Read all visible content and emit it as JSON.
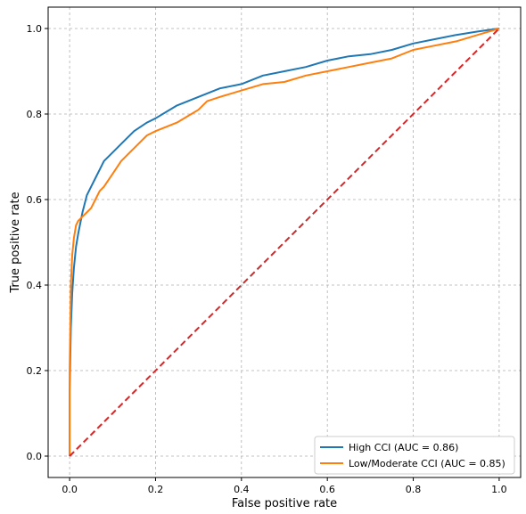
{
  "chart_data": {
    "type": "line",
    "xlabel": "False positive rate",
    "ylabel": "True positive rate",
    "xlim": [
      -0.05,
      1.05
    ],
    "ylim": [
      -0.05,
      1.05
    ],
    "x_ticks": [
      "0.0",
      "0.2",
      "0.4",
      "0.6",
      "0.8",
      "1.0"
    ],
    "y_ticks": [
      "0.0",
      "0.2",
      "0.4",
      "0.6",
      "0.8",
      "1.0"
    ],
    "grid": true,
    "legend_position": "lower-right",
    "series": [
      {
        "name": "High CCI (AUC = 0.86)",
        "color": "#1f77b4",
        "x": [
          0.0,
          0.0,
          0.003,
          0.006,
          0.01,
          0.015,
          0.02,
          0.03,
          0.04,
          0.05,
          0.06,
          0.07,
          0.08,
          0.1,
          0.12,
          0.15,
          0.18,
          0.2,
          0.25,
          0.3,
          0.35,
          0.4,
          0.45,
          0.5,
          0.55,
          0.6,
          0.65,
          0.7,
          0.75,
          0.8,
          0.85,
          0.9,
          0.95,
          1.0
        ],
        "y": [
          0.0,
          0.15,
          0.3,
          0.38,
          0.44,
          0.49,
          0.52,
          0.57,
          0.61,
          0.63,
          0.65,
          0.67,
          0.69,
          0.71,
          0.73,
          0.76,
          0.78,
          0.79,
          0.82,
          0.84,
          0.86,
          0.87,
          0.89,
          0.9,
          0.91,
          0.925,
          0.935,
          0.94,
          0.95,
          0.965,
          0.975,
          0.985,
          0.993,
          1.0
        ]
      },
      {
        "name": "Low/Moderate CCI (AUC = 0.85)",
        "color": "#ff7f0e",
        "x": [
          0.0,
          0.0,
          0.003,
          0.006,
          0.01,
          0.015,
          0.02,
          0.03,
          0.04,
          0.05,
          0.06,
          0.07,
          0.08,
          0.1,
          0.12,
          0.14,
          0.16,
          0.18,
          0.2,
          0.25,
          0.3,
          0.32,
          0.35,
          0.4,
          0.45,
          0.5,
          0.55,
          0.6,
          0.65,
          0.7,
          0.75,
          0.8,
          0.85,
          0.9,
          0.95,
          1.0
        ],
        "y": [
          0.0,
          0.2,
          0.4,
          0.47,
          0.51,
          0.54,
          0.55,
          0.56,
          0.57,
          0.58,
          0.6,
          0.62,
          0.63,
          0.66,
          0.69,
          0.71,
          0.73,
          0.75,
          0.76,
          0.78,
          0.81,
          0.83,
          0.84,
          0.855,
          0.87,
          0.875,
          0.89,
          0.9,
          0.91,
          0.92,
          0.93,
          0.95,
          0.96,
          0.97,
          0.985,
          1.0
        ]
      },
      {
        "name": "",
        "color": "#d62728",
        "line_style": "dashed",
        "x": [
          0.0,
          1.0
        ],
        "y": [
          0.0,
          1.0
        ]
      }
    ]
  }
}
